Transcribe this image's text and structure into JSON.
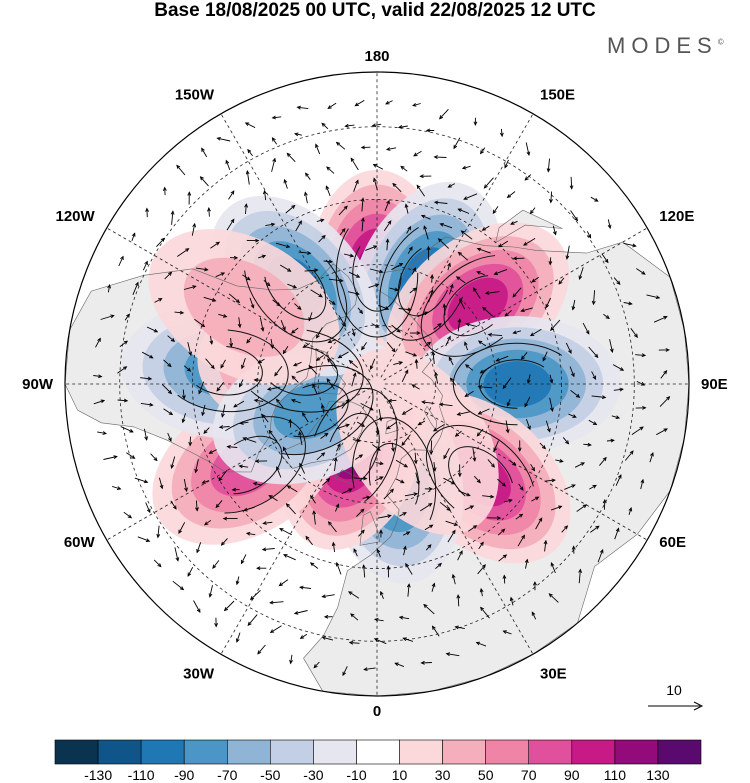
{
  "title": "Base 18/08/2025 00 UTC, valid 22/08/2025 12 UTC",
  "brand": "MODES",
  "brand_mark": "©",
  "map": {
    "projection": "north-polar-stereographic",
    "longitude_labels": [
      {
        "lon": 180,
        "text": "180"
      },
      {
        "lon": 150,
        "text": "150E"
      },
      {
        "lon": 120,
        "text": "120E"
      },
      {
        "lon": 90,
        "text": "90E"
      },
      {
        "lon": 60,
        "text": "60E"
      },
      {
        "lon": 30,
        "text": "30E"
      },
      {
        "lon": 0,
        "text": "0"
      },
      {
        "lon": -30,
        "text": "30W"
      },
      {
        "lon": -60,
        "text": "60W"
      },
      {
        "lon": -90,
        "text": "90W"
      },
      {
        "lon": -120,
        "text": "120W"
      },
      {
        "lon": -150,
        "text": "150W"
      }
    ],
    "anomaly_centers": [
      {
        "lon": 180,
        "lat": 62,
        "value": 110
      },
      {
        "lon": 155,
        "lat": 61,
        "value": -90
      },
      {
        "lon": 128,
        "lat": 58,
        "value": 90
      },
      {
        "lon": 90,
        "lat": 55,
        "value": -90
      },
      {
        "lon": 48,
        "lat": 55,
        "value": 90
      },
      {
        "lon": 10,
        "lat": 65,
        "value": -90
      },
      {
        "lon": -20,
        "lat": 72,
        "value": 110
      },
      {
        "lon": -58,
        "lat": 52,
        "value": 70
      },
      {
        "lon": -95,
        "lat": 52,
        "value": -70
      },
      {
        "lon": -100,
        "lat": 70,
        "value": 70
      },
      {
        "lon": -68,
        "lat": 72,
        "value": -70
      },
      {
        "lon": -140,
        "lat": 58,
        "value": -90
      },
      {
        "lon": -120,
        "lat": 52,
        "value": 40
      },
      {
        "lon": 35,
        "lat": 72,
        "value": 20
      }
    ]
  },
  "vector_legend": {
    "label": "10"
  },
  "colorbar": {
    "labels": [
      "-130",
      "-110",
      "-90",
      "-70",
      "-50",
      "-30",
      "-10",
      "10",
      "30",
      "50",
      "70",
      "90",
      "110",
      "130"
    ],
    "colors": [
      "#0a3350",
      "#10558a",
      "#1f77b4",
      "#4b96c6",
      "#8fb4d6",
      "#c3cfe4",
      "#e6e6f0",
      "#ffffff",
      "#fbd8da",
      "#f5aebb",
      "#ef84a7",
      "#e1509c",
      "#c71a86",
      "#930a7a",
      "#5a0a6e"
    ]
  }
}
